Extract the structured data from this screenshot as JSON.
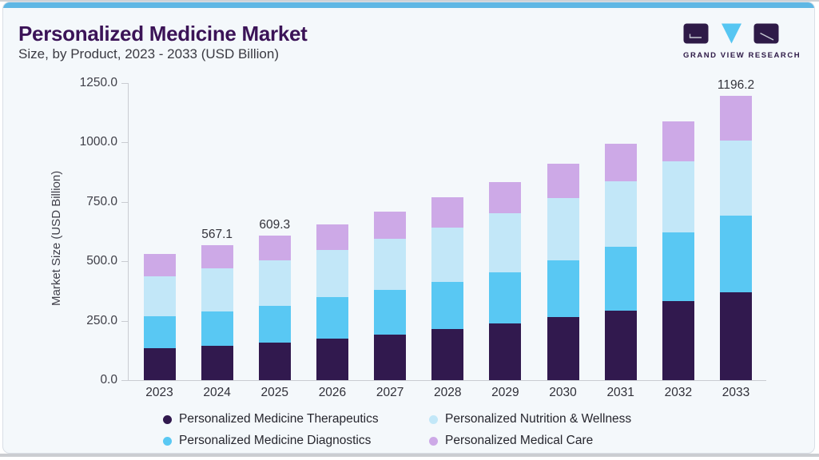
{
  "header": {
    "title": "Personalized Medicine Market",
    "subtitle": "Size, by Product, 2023 - 2033 (USD Billion)"
  },
  "logo": {
    "text": "GRAND VIEW RESEARCH"
  },
  "colors": {
    "topbar_accent": "#5FB7E4",
    "title_purple": "#3B1357",
    "card_background": "#F4F8FB",
    "axis_line": "#C9CCD2"
  },
  "chart_data": {
    "type": "bar",
    "stacked": true,
    "categories": [
      "2023",
      "2024",
      "2025",
      "2026",
      "2027",
      "2028",
      "2029",
      "2030",
      "2031",
      "2032",
      "2033"
    ],
    "series": [
      {
        "name": "Personalized Medicine Therapeutics",
        "color": "#31194E",
        "values": [
          135.5,
          143.6,
          157.2,
          174.1,
          193.1,
          214.8,
          237.2,
          264.3,
          293.7,
          331.0,
          369.3
        ]
      },
      {
        "name": "Personalized Medicine Diagnostics",
        "color": "#59C8F3",
        "values": [
          132.2,
          146.7,
          155.8,
          176.2,
          186.4,
          199.8,
          218.1,
          240.5,
          267.7,
          290.4,
          324.2
        ]
      },
      {
        "name": "Personalized Nutrition & Wellness",
        "color": "#C2E7F8",
        "values": [
          169.4,
          180.6,
          191.8,
          196.5,
          216.8,
          228.1,
          247.4,
          262.2,
          276.8,
          298.1,
          316.1
        ]
      },
      {
        "name": "Personalized Medical Care",
        "color": "#CDA9E7",
        "values": [
          92.8,
          96.2,
          104.5,
          108.4,
          113.1,
          126.4,
          132.1,
          144.4,
          155.8,
          169.4,
          186.6
        ]
      }
    ],
    "bar_total_labels": [
      "",
      "567.1",
      "609.3",
      "",
      "",
      "",
      "",
      "",
      "",
      "",
      "1196.2"
    ],
    "ylabel": "Market Size (USD Billion)",
    "ytick_labels": [
      "0.0",
      "250.0",
      "500.0",
      "750.0",
      "1000.0",
      "1250.0"
    ],
    "ytick_values": [
      0,
      250,
      500,
      750,
      1000,
      1250
    ],
    "ylim": [
      0,
      1250
    ],
    "grid": false,
    "legend_position": "bottom",
    "legend_display_order": [
      {
        "label": "Personalized Medicine Therapeutics",
        "color": "#31194E"
      },
      {
        "label": "Personalized Nutrition & Wellness",
        "color": "#C2E7F8"
      },
      {
        "label": "Personalized Medicine Diagnostics",
        "color": "#59C8F3"
      },
      {
        "label": "Personalized Medical Care",
        "color": "#CDA9E7"
      }
    ]
  }
}
